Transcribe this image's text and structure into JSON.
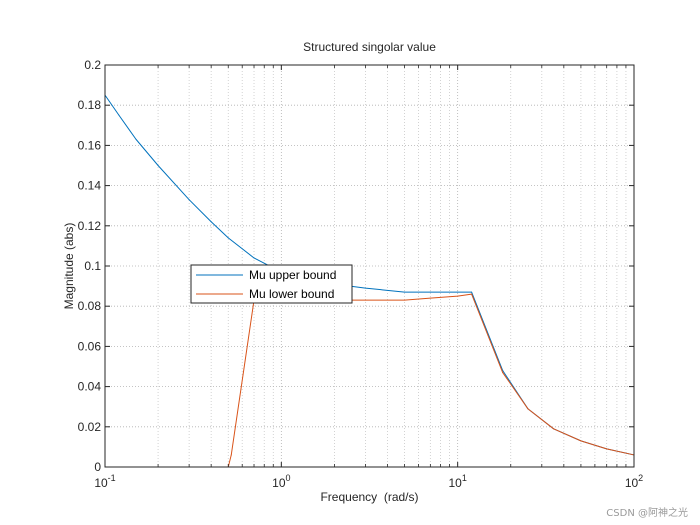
{
  "chart_data": {
    "type": "line",
    "title": "Structured singolar value",
    "xlabel": "Frequency  (rad/s)",
    "ylabel": "Magnitude (abs)",
    "xscale": "log",
    "xlim": [
      0.1,
      100
    ],
    "ylim": [
      0,
      0.2
    ],
    "grid": true,
    "minor_grid": true,
    "x_ticks": [
      {
        "value": 0.1,
        "base": "10",
        "exp": "-1"
      },
      {
        "value": 1,
        "base": "10",
        "exp": "0"
      },
      {
        "value": 10,
        "base": "10",
        "exp": "1"
      },
      {
        "value": 100,
        "base": "10",
        "exp": "2"
      }
    ],
    "y_ticks": [
      {
        "value": 0,
        "label": "0"
      },
      {
        "value": 0.02,
        "label": "0.02"
      },
      {
        "value": 0.04,
        "label": "0.04"
      },
      {
        "value": 0.06,
        "label": "0.06"
      },
      {
        "value": 0.08,
        "label": "0.08"
      },
      {
        "value": 0.1,
        "label": "0.1"
      },
      {
        "value": 0.12,
        "label": "0.12"
      },
      {
        "value": 0.14,
        "label": "0.14"
      },
      {
        "value": 0.16,
        "label": "0.16"
      },
      {
        "value": 0.18,
        "label": "0.18"
      },
      {
        "value": 0.2,
        "label": "0.2"
      }
    ],
    "legend_position": "center-left",
    "series": [
      {
        "name": "Mu upper bound",
        "color": "#0072BD",
        "x": [
          0.1,
          0.12,
          0.15,
          0.2,
          0.3,
          0.4,
          0.5,
          0.7,
          1.0,
          1.5,
          2.0,
          3.0,
          5.0,
          7.0,
          10.0,
          12.0,
          18.0,
          25.0,
          35.0,
          50.0,
          70.0,
          100.0
        ],
        "y": [
          0.185,
          0.175,
          0.163,
          0.15,
          0.133,
          0.122,
          0.114,
          0.104,
          0.097,
          0.093,
          0.091,
          0.089,
          0.087,
          0.087,
          0.087,
          0.087,
          0.048,
          0.029,
          0.019,
          0.013,
          0.009,
          0.006
        ]
      },
      {
        "name": "Mu lower bound",
        "color": "#D95319",
        "x": [
          0.1,
          0.3,
          0.5,
          0.52,
          0.7,
          1.0,
          1.5,
          2.0,
          3.0,
          5.0,
          7.0,
          10.0,
          12.0,
          18.0,
          25.0,
          35.0,
          50.0,
          70.0,
          100.0
        ],
        "y": [
          0.0,
          0.0,
          0.0,
          0.006,
          0.083,
          0.083,
          0.083,
          0.083,
          0.083,
          0.083,
          0.084,
          0.085,
          0.086,
          0.047,
          0.029,
          0.019,
          0.013,
          0.009,
          0.006
        ]
      }
    ]
  },
  "watermark": "CSDN @阿神之光"
}
